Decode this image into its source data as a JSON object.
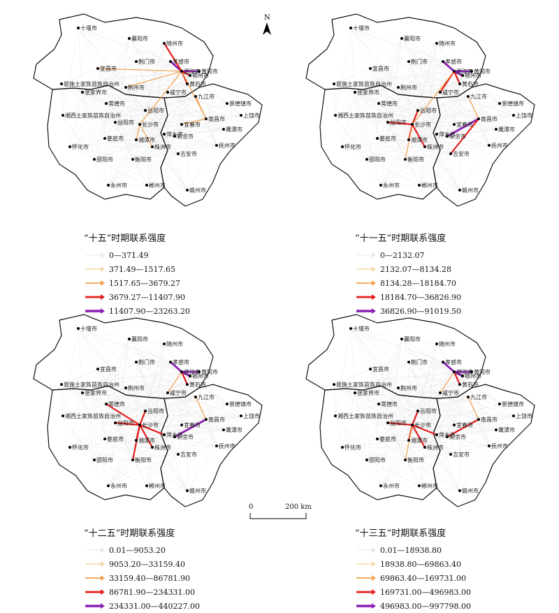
{
  "north_label": "N",
  "scale": {
    "zero": "0",
    "distance": "200 km"
  },
  "cities": [
    "十堰市",
    "襄阳市",
    "随州市",
    "荆门市",
    "孝感市",
    "宜昌市",
    "恩施土家族苗族自治州",
    "武汉市",
    "鄂州市",
    "黄石市",
    "黄冈市",
    "咸宁市",
    "荆州市",
    "张家界市",
    "常德市",
    "岳阳市",
    "九江市",
    "景德镇市",
    "上饶市",
    "湘西土家族苗族自治州",
    "益阳市",
    "长沙市",
    "南昌市",
    "宜春市",
    "鹰潭市",
    "新余市",
    "抚州市",
    "娄底市",
    "湘潭市",
    "怀化市",
    "株洲市",
    "萍乡市",
    "邵阳市",
    "衡阳市",
    "吉安市",
    "永州市",
    "郴州市",
    "赣州市"
  ],
  "panels": [
    {
      "title": "“十五”时期联系强度",
      "classes": [
        "0—371.49",
        "371.49—1517.65",
        "1517.65—3679.27",
        "3679.27—11407.90",
        "11407.90—23263.20"
      ]
    },
    {
      "title": "“十一五”时期联系强度",
      "classes": [
        "0—2132.07",
        "2132.07—8134.28",
        "8134.28—18184.70",
        "18184.70—36826.90",
        "36826.90—91019.50"
      ]
    },
    {
      "title": "“十二五”时期联系强度",
      "classes": [
        "0.01—9053.20",
        "9053.20—33159.40",
        "33159.40—86781.90",
        "86781.90—234331.00",
        "234331.00—440227.00"
      ]
    },
    {
      "title": "“十三五”时期联系强度",
      "classes": [
        "0.01—18938.80",
        "18938.80—69863.40",
        "69863.40—169731.00",
        "169731.00—496983.00",
        "496983.00—997798.00"
      ]
    }
  ],
  "class_colors": [
    "#e8e8e8",
    "#f6d6a8",
    "#f3a04a",
    "#e41a1c",
    "#8b1fb5"
  ]
}
